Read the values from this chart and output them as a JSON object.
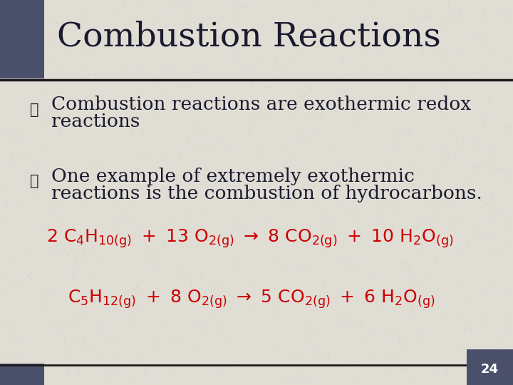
{
  "title": "Combustion Reactions",
  "background_color": "#e0ddd5",
  "title_color": "#1a1a2e",
  "title_fontsize": 34,
  "header_bar_color": "#4a4f6a",
  "header_line_color": "#1a1a1a",
  "bullet_color": "#1a1a2e",
  "bullet_text_color": "#1a1a2e",
  "bullet_fontsize": 19,
  "bullet1_line1": "Combustion reactions are exothermic redox",
  "bullet1_line2": "reactions",
  "bullet2_line1": "One example of extremely exothermic",
  "bullet2_line2": "reactions is the combustion of hydrocarbons.",
  "equation_color": "#cc0000",
  "equation_fontsize": 18,
  "page_number": "24",
  "page_number_color": "#ffffff",
  "page_bg_color": "#4a4f6a"
}
